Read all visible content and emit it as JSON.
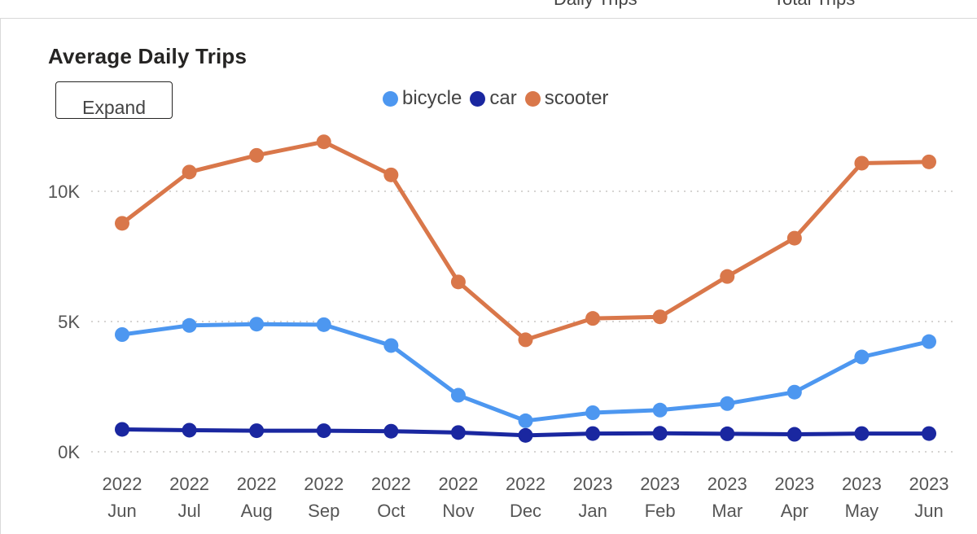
{
  "header": {
    "tabs": [
      {
        "label": "Daily Trips"
      },
      {
        "label": "Total Trips"
      }
    ]
  },
  "card": {
    "title": "Average Daily Trips",
    "expand_label": "Expand"
  },
  "colors": {
    "bicycle": "#4d97f0",
    "car": "#1a27a0",
    "scooter": "#d9774a",
    "grid": "#c8c6c4"
  },
  "chart_data": {
    "type": "line",
    "title": "Average Daily Trips",
    "xlabel": "",
    "ylabel": "",
    "ylim": [
      0,
      12000
    ],
    "yticks": [
      {
        "value": 0,
        "label": "0K"
      },
      {
        "value": 5000,
        "label": "5K"
      },
      {
        "value": 10000,
        "label": "10K"
      }
    ],
    "grid": true,
    "legend": "top",
    "categories": [
      {
        "year": "2022",
        "month": "Jun"
      },
      {
        "year": "2022",
        "month": "Jul"
      },
      {
        "year": "2022",
        "month": "Aug"
      },
      {
        "year": "2022",
        "month": "Sep"
      },
      {
        "year": "2022",
        "month": "Oct"
      },
      {
        "year": "2022",
        "month": "Nov"
      },
      {
        "year": "2022",
        "month": "Dec"
      },
      {
        "year": "2023",
        "month": "Jan"
      },
      {
        "year": "2023",
        "month": "Feb"
      },
      {
        "year": "2023",
        "month": "Mar"
      },
      {
        "year": "2023",
        "month": "Apr"
      },
      {
        "year": "2023",
        "month": "May"
      },
      {
        "year": "2023",
        "month": "Jun"
      }
    ],
    "series": [
      {
        "name": "bicycle",
        "color": "#4d97f0",
        "values": [
          4500,
          4850,
          4900,
          4880,
          4080,
          2170,
          1190,
          1500,
          1600,
          1850,
          2290,
          3640,
          4230
        ]
      },
      {
        "name": "car",
        "color": "#1a27a0",
        "values": [
          860,
          830,
          810,
          810,
          790,
          740,
          630,
          700,
          710,
          690,
          670,
          700,
          700
        ]
      },
      {
        "name": "scooter",
        "color": "#d9774a",
        "values": [
          8770,
          10740,
          11380,
          11900,
          10630,
          6520,
          4300,
          5120,
          5180,
          6730,
          8200,
          11080,
          11130
        ]
      }
    ]
  }
}
